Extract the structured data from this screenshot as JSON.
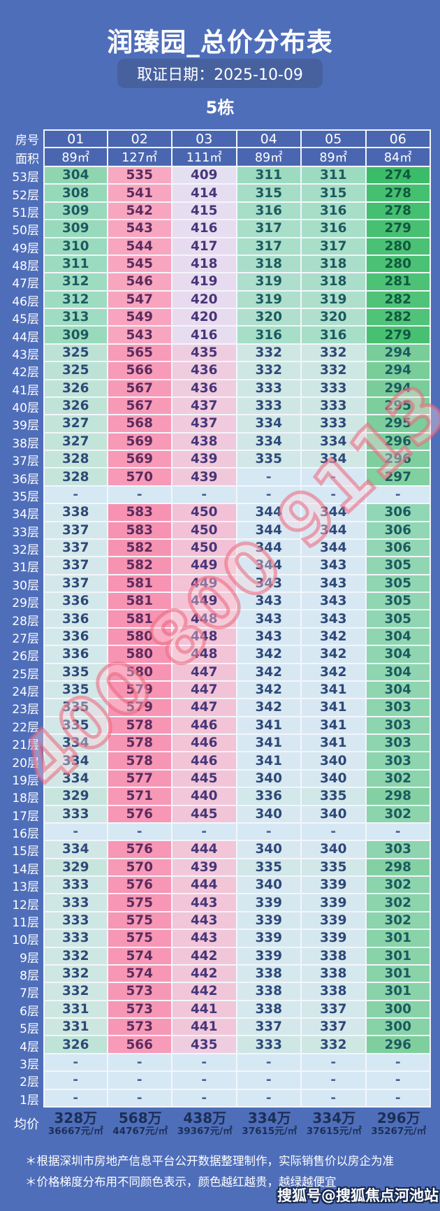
{
  "header": {
    "title": "润臻园_总价分布表",
    "date_label": "取证日期：2025-10-09",
    "building": "5栋"
  },
  "chart_data": {
    "type": "heatmap",
    "title": "润臻园_总价分布表",
    "subtitle": "取证日期：2025-10-09",
    "group": "5栋",
    "unit": "万元",
    "row_header_label": "房号",
    "area_header_label": "面积",
    "empty_placeholder": "-",
    "columns": [
      "01",
      "02",
      "03",
      "04",
      "05",
      "06"
    ],
    "column_areas": [
      "89㎡",
      "127㎡",
      "111㎡",
      "89㎡",
      "89㎡",
      "84㎡"
    ],
    "rows": [
      {
        "floor": "53层",
        "values": [
          304,
          535,
          409,
          311,
          311,
          274
        ]
      },
      {
        "floor": "52层",
        "values": [
          308,
          541,
          414,
          315,
          315,
          278
        ]
      },
      {
        "floor": "51层",
        "values": [
          309,
          542,
          415,
          316,
          316,
          278
        ]
      },
      {
        "floor": "50层",
        "values": [
          309,
          543,
          416,
          317,
          316,
          279
        ]
      },
      {
        "floor": "49层",
        "values": [
          310,
          544,
          417,
          317,
          317,
          280
        ]
      },
      {
        "floor": "48层",
        "values": [
          311,
          545,
          418,
          318,
          318,
          280
        ]
      },
      {
        "floor": "47层",
        "values": [
          312,
          546,
          419,
          319,
          318,
          281
        ]
      },
      {
        "floor": "46层",
        "values": [
          312,
          547,
          420,
          319,
          319,
          282
        ]
      },
      {
        "floor": "45层",
        "values": [
          313,
          549,
          420,
          320,
          320,
          282
        ]
      },
      {
        "floor": "44层",
        "values": [
          309,
          543,
          416,
          316,
          316,
          279
        ]
      },
      {
        "floor": "43层",
        "values": [
          325,
          565,
          435,
          332,
          332,
          294
        ]
      },
      {
        "floor": "42层",
        "values": [
          325,
          566,
          436,
          332,
          332,
          294
        ]
      },
      {
        "floor": "41层",
        "values": [
          326,
          567,
          436,
          333,
          333,
          294
        ]
      },
      {
        "floor": "40层",
        "values": [
          326,
          567,
          437,
          333,
          333,
          295
        ]
      },
      {
        "floor": "39层",
        "values": [
          327,
          568,
          437,
          334,
          333,
          295
        ]
      },
      {
        "floor": "38层",
        "values": [
          327,
          569,
          438,
          334,
          334,
          296
        ]
      },
      {
        "floor": "37层",
        "values": [
          328,
          569,
          439,
          335,
          334,
          296
        ]
      },
      {
        "floor": "36层",
        "values": [
          328,
          570,
          439,
          null,
          null,
          297
        ]
      },
      {
        "floor": "35层",
        "values": [
          null,
          null,
          null,
          null,
          null,
          null
        ]
      },
      {
        "floor": "34层",
        "values": [
          338,
          583,
          450,
          344,
          344,
          306
        ]
      },
      {
        "floor": "33层",
        "values": [
          337,
          583,
          450,
          344,
          344,
          306
        ]
      },
      {
        "floor": "32层",
        "values": [
          337,
          582,
          450,
          344,
          344,
          306
        ]
      },
      {
        "floor": "31层",
        "values": [
          337,
          582,
          449,
          344,
          343,
          305
        ]
      },
      {
        "floor": "30层",
        "values": [
          337,
          581,
          449,
          343,
          343,
          305
        ]
      },
      {
        "floor": "29层",
        "values": [
          336,
          581,
          449,
          343,
          343,
          305
        ]
      },
      {
        "floor": "28层",
        "values": [
          336,
          581,
          448,
          343,
          343,
          305
        ]
      },
      {
        "floor": "27层",
        "values": [
          336,
          580,
          448,
          343,
          342,
          304
        ]
      },
      {
        "floor": "26层",
        "values": [
          336,
          580,
          448,
          342,
          342,
          304
        ]
      },
      {
        "floor": "25层",
        "values": [
          335,
          580,
          447,
          342,
          342,
          304
        ]
      },
      {
        "floor": "24层",
        "values": [
          335,
          579,
          447,
          342,
          341,
          304
        ]
      },
      {
        "floor": "23层",
        "values": [
          335,
          579,
          447,
          342,
          341,
          303
        ]
      },
      {
        "floor": "22层",
        "values": [
          335,
          578,
          446,
          341,
          341,
          303
        ]
      },
      {
        "floor": "21层",
        "values": [
          334,
          578,
          446,
          341,
          341,
          303
        ]
      },
      {
        "floor": "20层",
        "values": [
          334,
          578,
          446,
          341,
          340,
          303
        ]
      },
      {
        "floor": "19层",
        "values": [
          334,
          577,
          445,
          340,
          340,
          302
        ]
      },
      {
        "floor": "18层",
        "values": [
          329,
          571,
          440,
          336,
          335,
          298
        ]
      },
      {
        "floor": "17层",
        "values": [
          333,
          576,
          445,
          340,
          340,
          302
        ]
      },
      {
        "floor": "16层",
        "values": [
          null,
          null,
          null,
          null,
          null,
          null
        ]
      },
      {
        "floor": "15层",
        "values": [
          334,
          576,
          444,
          340,
          340,
          303
        ]
      },
      {
        "floor": "14层",
        "values": [
          329,
          570,
          439,
          335,
          335,
          298
        ]
      },
      {
        "floor": "13层",
        "values": [
          333,
          576,
          444,
          340,
          339,
          302
        ]
      },
      {
        "floor": "12层",
        "values": [
          333,
          575,
          443,
          339,
          339,
          302
        ]
      },
      {
        "floor": "11层",
        "values": [
          333,
          575,
          443,
          339,
          339,
          302
        ]
      },
      {
        "floor": "10层",
        "values": [
          333,
          575,
          443,
          339,
          339,
          301
        ]
      },
      {
        "floor": "9层",
        "values": [
          332,
          574,
          442,
          339,
          338,
          301
        ]
      },
      {
        "floor": "8层",
        "values": [
          332,
          574,
          442,
          338,
          338,
          301
        ]
      },
      {
        "floor": "7层",
        "values": [
          332,
          573,
          442,
          338,
          338,
          301
        ]
      },
      {
        "floor": "6层",
        "values": [
          331,
          573,
          441,
          338,
          337,
          300
        ]
      },
      {
        "floor": "5层",
        "values": [
          331,
          573,
          441,
          337,
          337,
          300
        ]
      },
      {
        "floor": "4层",
        "values": [
          326,
          566,
          435,
          333,
          332,
          296
        ]
      },
      {
        "floor": "3层",
        "values": [
          null,
          null,
          null,
          null,
          null,
          null
        ]
      },
      {
        "floor": "2层",
        "values": [
          null,
          null,
          null,
          null,
          null,
          null
        ]
      },
      {
        "floor": "1层",
        "values": [
          null,
          null,
          null,
          null,
          null,
          null
        ]
      }
    ],
    "average": {
      "label": "均价",
      "totals": [
        "328万",
        "568万",
        "438万",
        "334万",
        "334万",
        "296万"
      ],
      "unit_prices": [
        "36667元/㎡",
        "44767元/㎡",
        "39367元/㎡",
        "37615元/㎡",
        "37615元/㎡",
        "35267元/㎡"
      ]
    },
    "color_rule": "颜色越红越贵，越绿越便宜",
    "legend_position": "none",
    "grid": true
  },
  "footnotes": [
    "＊根据深圳市房地产信息平台公开数据整理制作，实际销售价以房企为准",
    "＊价格梯度分布用不同颜色表示，颜色越红越贵，越绿越便宜"
  ],
  "watermark": {
    "phone": "400 800 9113",
    "credit": "搜狐号@搜狐焦点河池站"
  },
  "colors": {
    "page_background": "#4f6eba",
    "header_cell_background": "#4a66b0",
    "date_pill_background": "#47619f",
    "empty_cell_background": "#d6e8f4",
    "cell_border": "#f2f6fb",
    "cheap_green": "#3bbc68",
    "mid_pale_blue": "#d8e8f3",
    "expensive_pink": "#f791b1",
    "average_text": "#1b2f55",
    "watermark_red": "#eb647a"
  }
}
